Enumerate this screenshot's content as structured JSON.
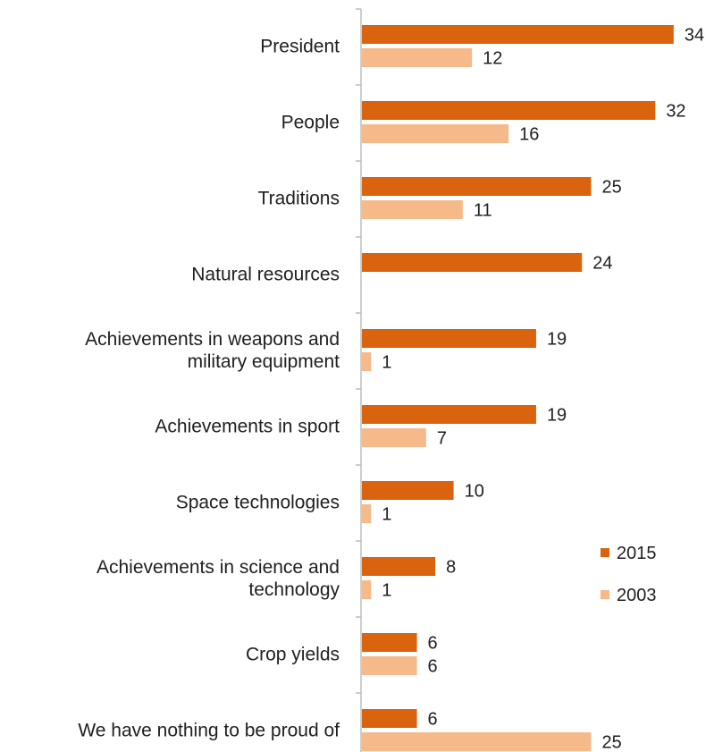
{
  "chart_data": {
    "type": "bar",
    "orientation": "horizontal",
    "categories": [
      [
        "President"
      ],
      [
        "People"
      ],
      [
        "Traditions"
      ],
      [
        "Natural resources"
      ],
      [
        "Achievements in weapons and",
        "military equipment"
      ],
      [
        "Achievements in sport"
      ],
      [
        "Space technologies"
      ],
      [
        "Achievements in science and",
        "technology"
      ],
      [
        "Crop yields"
      ],
      [
        "We have nothing to be proud of"
      ]
    ],
    "series": [
      {
        "name": "2015",
        "color": "#d9630f",
        "values": [
          34,
          32,
          25,
          24,
          19,
          19,
          10,
          8,
          6,
          6
        ]
      },
      {
        "name": "2003",
        "color": "#f5b98a",
        "values": [
          12,
          16,
          11,
          null,
          1,
          7,
          1,
          1,
          6,
          25
        ]
      }
    ],
    "xlim": [
      0,
      34
    ],
    "grid": false,
    "legend_position": "right"
  }
}
